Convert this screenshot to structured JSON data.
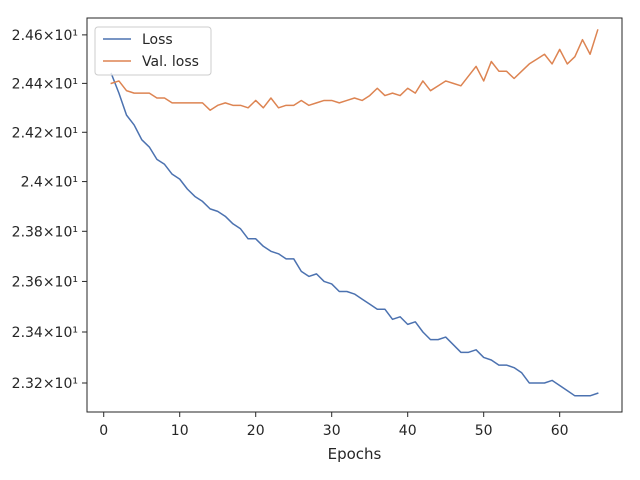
{
  "chart_data": {
    "type": "line",
    "title": "",
    "xlabel": "Epochs",
    "ylabel": "",
    "xlim": [
      -2.2,
      68.2
    ],
    "ylim": [
      23.087,
      24.67
    ],
    "y_scale": "log",
    "grid": false,
    "legend": "top-left",
    "x_ticks": [
      0,
      10,
      20,
      30,
      40,
      50,
      60
    ],
    "x_tick_labels": [
      "0",
      "10",
      "20",
      "30",
      "40",
      "50",
      "60"
    ],
    "y_ticks": [
      23.2,
      23.4,
      23.6,
      23.8,
      24.0,
      24.2,
      24.4,
      24.6
    ],
    "y_tick_labels": [
      "2.32×10¹",
      "2.34×10¹",
      "2.36×10¹",
      "2.38×10¹",
      "2.4×10¹",
      "2.42×10¹",
      "2.44×10¹",
      "2.46×10¹"
    ],
    "series": [
      {
        "name": "Loss",
        "color": "#4c72b0",
        "x": [
          1,
          2,
          3,
          4,
          5,
          6,
          7,
          8,
          9,
          10,
          11,
          12,
          13,
          14,
          15,
          16,
          17,
          18,
          19,
          20,
          21,
          22,
          23,
          24,
          25,
          26,
          27,
          28,
          29,
          30,
          31,
          32,
          33,
          34,
          35,
          36,
          37,
          38,
          39,
          40,
          41,
          42,
          43,
          44,
          45,
          46,
          47,
          48,
          49,
          50,
          51,
          52,
          53,
          54,
          55,
          56,
          57,
          58,
          59,
          60,
          61,
          62,
          63,
          64,
          65
        ],
        "values": [
          24.44,
          24.36,
          24.27,
          24.23,
          24.17,
          24.14,
          24.09,
          24.07,
          24.03,
          24.01,
          23.97,
          23.94,
          23.92,
          23.89,
          23.88,
          23.86,
          23.83,
          23.81,
          23.77,
          23.77,
          23.74,
          23.72,
          23.71,
          23.69,
          23.69,
          23.64,
          23.62,
          23.63,
          23.6,
          23.59,
          23.56,
          23.56,
          23.55,
          23.53,
          23.51,
          23.49,
          23.49,
          23.45,
          23.46,
          23.43,
          23.44,
          23.4,
          23.37,
          23.37,
          23.38,
          23.35,
          23.32,
          23.32,
          23.33,
          23.3,
          23.29,
          23.27,
          23.27,
          23.26,
          23.24,
          23.2,
          23.2,
          23.2,
          23.21,
          23.19,
          23.17,
          23.15,
          23.15,
          23.15,
          23.16
        ]
      },
      {
        "name": "Val. loss",
        "color": "#dd8452",
        "x": [
          1,
          2,
          3,
          4,
          5,
          6,
          7,
          8,
          9,
          10,
          11,
          12,
          13,
          14,
          15,
          16,
          17,
          18,
          19,
          20,
          21,
          22,
          23,
          24,
          25,
          26,
          27,
          28,
          29,
          30,
          31,
          32,
          33,
          34,
          35,
          36,
          37,
          38,
          39,
          40,
          41,
          42,
          43,
          44,
          45,
          46,
          47,
          48,
          49,
          50,
          51,
          52,
          53,
          54,
          55,
          56,
          57,
          58,
          59,
          60,
          61,
          62,
          63,
          64,
          65
        ],
        "values": [
          24.4,
          24.41,
          24.37,
          24.36,
          24.36,
          24.36,
          24.34,
          24.34,
          24.32,
          24.32,
          24.32,
          24.32,
          24.32,
          24.29,
          24.31,
          24.32,
          24.31,
          24.31,
          24.3,
          24.33,
          24.3,
          24.34,
          24.3,
          24.31,
          24.31,
          24.33,
          24.31,
          24.32,
          24.33,
          24.33,
          24.32,
          24.33,
          24.34,
          24.33,
          24.35,
          24.38,
          24.35,
          24.36,
          24.35,
          24.38,
          24.36,
          24.41,
          24.37,
          24.39,
          24.41,
          24.4,
          24.39,
          24.43,
          24.47,
          24.41,
          24.49,
          24.45,
          24.45,
          24.42,
          24.45,
          24.48,
          24.5,
          24.52,
          24.48,
          24.54,
          24.48,
          24.51,
          24.58,
          24.52,
          24.62
        ]
      }
    ]
  }
}
